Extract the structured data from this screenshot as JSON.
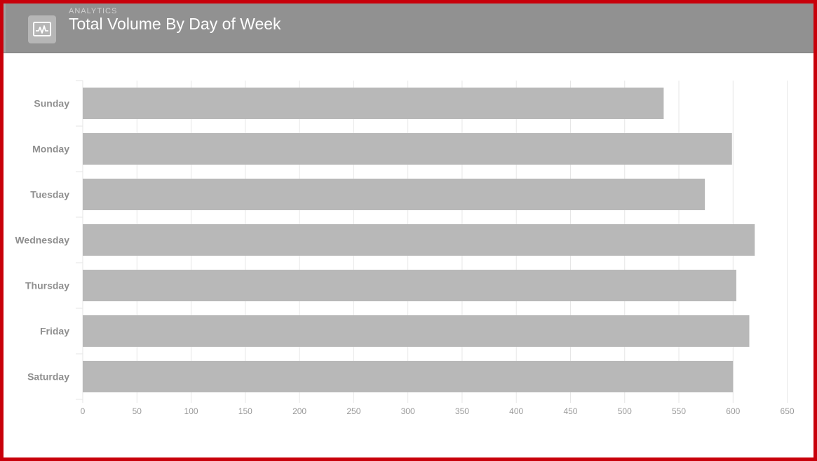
{
  "header": {
    "eyebrow": "ANALYTICS",
    "title": "Total Volume By Day of Week",
    "icon": "activity-chart-icon"
  },
  "colors": {
    "frame_border": "#c8000a",
    "header_bg": "#919191",
    "bar": "#b8b8b8",
    "grid": "#e6e6e6"
  },
  "chart_data": {
    "type": "bar",
    "orientation": "horizontal",
    "title": "Total Volume By Day of Week",
    "categories": [
      "Sunday",
      "Monday",
      "Tuesday",
      "Wednesday",
      "Thursday",
      "Friday",
      "Saturday"
    ],
    "values": [
      536,
      599,
      574,
      620,
      603,
      615,
      600
    ],
    "xlim": [
      0,
      650
    ],
    "x_ticks": [
      "0",
      "50",
      "100",
      "150",
      "200",
      "250",
      "300",
      "350",
      "400",
      "450",
      "500",
      "550",
      "600",
      "650"
    ],
    "grid": true,
    "legend": "none"
  }
}
